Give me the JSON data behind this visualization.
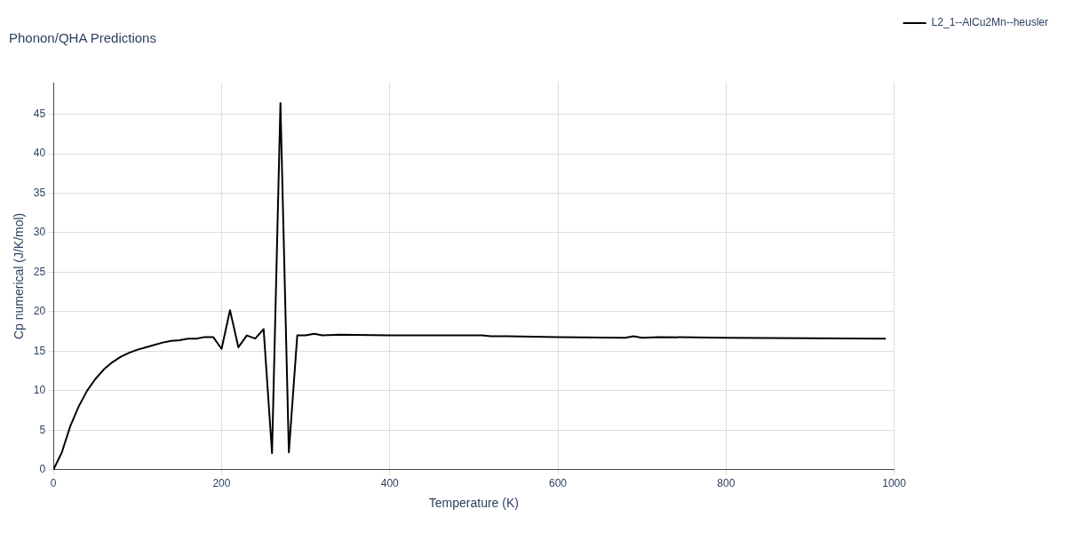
{
  "chart_data": {
    "type": "line",
    "title": "Phonon/QHA Predictions",
    "xlabel": "Temperature (K)",
    "ylabel": "Cp numerical (J/K/mol)",
    "xlim": [
      0,
      1000
    ],
    "xticks": [
      0,
      200,
      400,
      600,
      800,
      1000
    ],
    "ylim": [
      0,
      49
    ],
    "yticks": [
      0,
      5,
      10,
      15,
      20,
      25,
      30,
      35,
      40,
      45
    ],
    "grid": true,
    "legend": "top right",
    "marker": "none",
    "line_style": "solid",
    "series": [
      {
        "name": "L2_1--AlCu2Mn--heusler",
        "color": "#000000",
        "x": [
          0,
          10,
          20,
          30,
          40,
          50,
          60,
          70,
          80,
          90,
          100,
          110,
          120,
          130,
          140,
          150,
          160,
          170,
          180,
          190,
          200,
          210,
          220,
          230,
          240,
          250,
          260,
          270,
          280,
          290,
          300,
          310,
          320,
          340,
          400,
          450,
          510,
          520,
          540,
          600,
          680,
          690,
          700,
          720,
          800,
          990
        ],
        "values": [
          0,
          2.2,
          5.5,
          8.0,
          10.0,
          11.5,
          12.7,
          13.6,
          14.3,
          14.8,
          15.2,
          15.5,
          15.8,
          16.1,
          16.3,
          16.4,
          16.6,
          16.6,
          16.8,
          16.8,
          15.3,
          20.2,
          15.5,
          17.0,
          16.6,
          17.8,
          2.1,
          46.4,
          2.2,
          17.0,
          17.0,
          17.2,
          17.0,
          17.1,
          17.0,
          17.0,
          17.0,
          16.9,
          16.9,
          16.8,
          16.7,
          16.9,
          16.7,
          16.8,
          16.7,
          16.6
        ]
      }
    ]
  }
}
